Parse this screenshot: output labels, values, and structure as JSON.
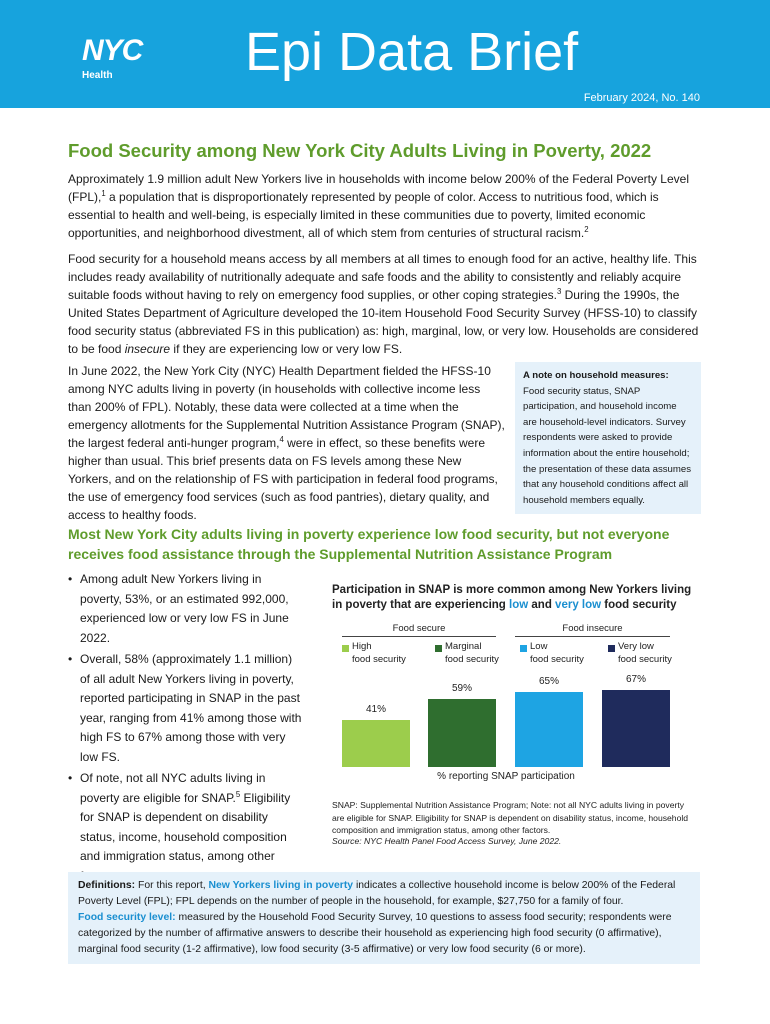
{
  "header": {
    "logo": "NYC",
    "logo_sub": "Health",
    "title": "Epi Data Brief",
    "issue": "February 2024, No. 140"
  },
  "title": "Food Security among New York City Adults Living in Poverty, 2022",
  "intro": [
    [
      {
        "text": "Approximately 1.9 million adult New Yorkers live in households with income below 200% of the Federal Poverty Level (FPL),"
      },
      {
        "text": "1",
        "sup": true
      },
      {
        "text": " a population that is disproportionately represented by people of color. Access to nutritious food, which is essential to health and well-being, is especially limited in these communities due to poverty, limited economic opportunities, and neighborhood divestment, all of which stem from centuries of structural racism."
      },
      {
        "text": "2",
        "sup": true
      }
    ],
    [
      {
        "text": "Food security for a household means access by all members at all times to enough food for an active, healthy life. This includes ready availability of nutritionally adequate and safe foods and the ability to consistently and reliably acquire suitable foods without having to rely on emergency food supplies, or other coping strategies."
      },
      {
        "text": "3",
        "sup": true
      },
      {
        "text": " During the 1990s, the United States Department of Agriculture developed the 10-item Household Food Security Survey (HFSS-10) to classify food security status (abbreviated FS in this publication) as: high, marginal, low, or very low. Households are considered to be food "
      },
      {
        "text": "insecure",
        "italic": true
      },
      {
        "text": " if they are experiencing low or very low FS."
      }
    ]
  ],
  "context": [
    {
      "text": "In June 2022, the New York City (NYC) Health Department fielded the HFSS-10 among NYC adults living in poverty (in households with collective income less than 200% of FPL). Notably, these data were collected at a time when the emergency allotments for the Supplemental Nutrition Assistance Program (SNAP), the largest federal anti-hunger program,"
    },
    {
      "text": "4",
      "sup": true
    },
    {
      "text": " were in effect, so these benefits were higher than usual. This brief presents data on FS levels among these New Yorkers, and on the relationship of FS with participation in federal food programs, the use of emergency food services (such as food pantries), dietary quality, and access to healthy foods."
    }
  ],
  "note": {
    "title": "A note on household measures:",
    "body": "Food security status, SNAP participation, and household income are household-level indicators. Survey respondents were asked to provide information about the entire household; the presentation of these data assumes that any household conditions affect all household members equally."
  },
  "section_heading": "Most New York City adults living in poverty experience low food security, but not everyone receives food assistance through the Supplemental Nutrition Assistance Program",
  "bullets": [
    [
      {
        "text": "Among adult New Yorkers living in poverty, 53%, or an estimated 992,000, experienced low or very low FS in June 2022."
      }
    ],
    [
      {
        "text": "Overall, 58% (approximately 1.1 million) of all adult New Yorkers living in poverty, reported participating in SNAP in the past year, ranging from 41% among those with high FS to 67% among those with very low FS."
      }
    ],
    [
      {
        "text": "Of note, not all NYC adults living in poverty are eligible for SNAP."
      },
      {
        "text": "5",
        "sup": true
      },
      {
        "text": " Eligibility for SNAP is dependent on disability status, income, household composition and immigration status, among other factors."
      }
    ]
  ],
  "chart_data": {
    "type": "bar",
    "title": [
      {
        "text": "Participation in SNAP is more common among New Yorkers living in poverty that are experiencing "
      },
      {
        "text": "low",
        "blue": true
      },
      {
        "text": " and "
      },
      {
        "text": "very low",
        "blue": true
      },
      {
        "text": " food security"
      }
    ],
    "groups": [
      "Food secure",
      "Food insecure"
    ],
    "categories": [
      "High\nfood security",
      "Marginal\nfood security",
      "Low\nfood security",
      "Very low\nfood security"
    ],
    "values": [
      41,
      59,
      65,
      67
    ],
    "value_labels": [
      "41%",
      "59%",
      "65%",
      "67%"
    ],
    "colors": [
      "#9ccd4c",
      "#2f6e2f",
      "#1ea4e3",
      "#1f2b5c"
    ],
    "x_label": "% reporting SNAP participation",
    "note": "SNAP: Supplemental Nutrition Assistance Program; Note: not all NYC adults living in poverty are eligible for SNAP. Eligibility for SNAP is dependent on disability status, income, household composition and immigration status, among other factors.",
    "source": "Source: NYC Health Panel Food Access Survey, June 2022."
  },
  "definitions": [
    [
      {
        "text": "Definitions:",
        "bold": true
      },
      {
        "text": " For this report, "
      },
      {
        "text": "New Yorkers living in poverty",
        "blue": true
      },
      {
        "text": " indicates a collective household income is below 200% of the Federal Poverty Level (FPL); FPL depends on the number of people in the household, for example, $27,750 for a family of four."
      }
    ],
    [
      {
        "text": "Food security level:",
        "blue": true
      },
      {
        "text": " measured by the Household Food Security Survey, 10 questions to assess food security; respondents were categorized by the number of affirmative answers to describe their household as experiencing high food security (0 affirmative), marginal food security (1-2 affirmative), low food security (3-5 affirmative) or very low food security (6 or more)."
      }
    ]
  ]
}
